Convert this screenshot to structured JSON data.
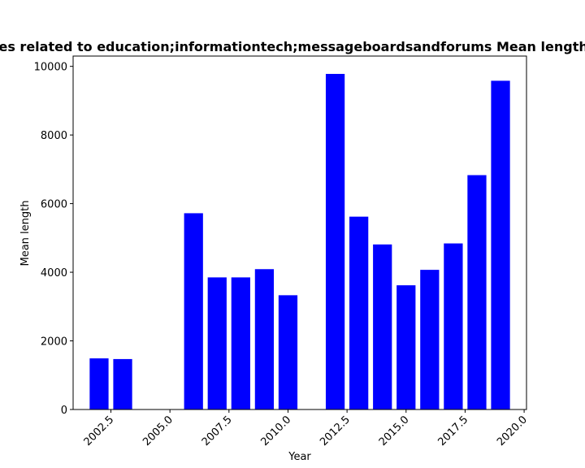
{
  "chart_data": {
    "type": "bar",
    "title": "Sites related to education;informationtech;messageboardsandforums Mean length in",
    "xlabel": "Year",
    "ylabel": "Mean length",
    "bar_color": "#0000ff",
    "x": [
      2002,
      2003,
      2006,
      2007,
      2008,
      2009,
      2010,
      2012,
      2013,
      2014,
      2015,
      2016,
      2017,
      2018,
      2019
    ],
    "values": [
      1490,
      1470,
      5720,
      3850,
      3850,
      4090,
      3330,
      9780,
      5620,
      4810,
      3620,
      4070,
      4840,
      6830,
      9580
    ],
    "xlim": [
      2000.9,
      2020.1
    ],
    "ylim": [
      0,
      10300
    ],
    "xticks": [
      2002.5,
      2005.0,
      2007.5,
      2010.0,
      2012.5,
      2015.0,
      2017.5,
      2020.0
    ],
    "xtick_labels": [
      "2002.5",
      "2005.0",
      "2007.5",
      "2010.0",
      "2012.5",
      "2015.0",
      "2017.5",
      "2020.0"
    ],
    "yticks": [
      0,
      2000,
      4000,
      6000,
      8000,
      10000
    ],
    "ytick_labels": [
      "0",
      "2000",
      "4000",
      "6000",
      "8000",
      "10000"
    ],
    "grid": false,
    "legend": "none"
  }
}
